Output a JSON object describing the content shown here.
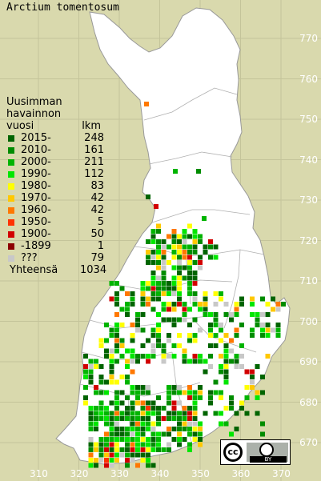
{
  "title": "Arctium tomentosum",
  "legend": {
    "header": [
      "Uusimman",
      "havainnon"
    ],
    "col_year": "vuosi",
    "col_count": "lkm",
    "rows": [
      {
        "label": "2015-",
        "count": "248",
        "color": "#006400"
      },
      {
        "label": "2010-",
        "count": "161",
        "color": "#008c00"
      },
      {
        "label": "2000-",
        "count": "211",
        "color": "#00b400"
      },
      {
        "label": "1990-",
        "count": "112",
        "color": "#00e600"
      },
      {
        "label": "1980-",
        "count": "83",
        "color": "#ffff00"
      },
      {
        "label": "1970-",
        "count": "42",
        "color": "#ffc800"
      },
      {
        "label": "1960-",
        "count": "42",
        "color": "#ff7800"
      },
      {
        "label": "1950-",
        "count": "5",
        "color": "#ff3200"
      },
      {
        "label": "1900-",
        "count": "50",
        "color": "#d20000"
      },
      {
        "label": "-1899",
        "count": "1",
        "color": "#8c0000"
      },
      {
        "label": "???",
        "count": "79",
        "color": "#c8c8c8"
      }
    ],
    "total_label": "Yhteensä",
    "total_count": "1034"
  },
  "y_ticks": [
    "770",
    "760",
    "750",
    "740",
    "730",
    "720",
    "710",
    "700",
    "690",
    "680",
    "670"
  ],
  "x_ticks": [
    "310",
    "320",
    "330",
    "340",
    "350",
    "360",
    "370"
  ],
  "license": {
    "cc": "cc",
    "by": "BY"
  }
}
